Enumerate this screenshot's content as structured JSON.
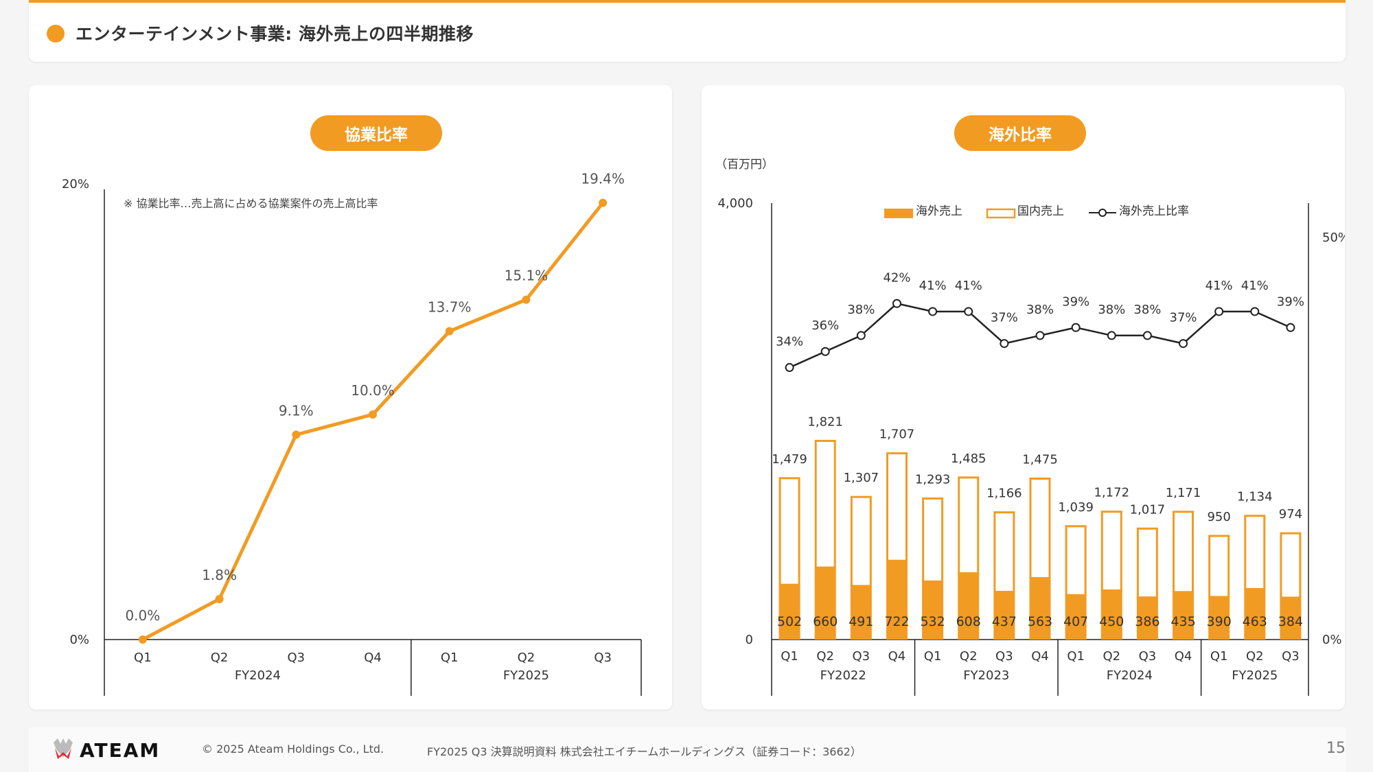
{
  "header": {
    "title": "エンターテインメント事業: 海外売上の四半期推移",
    "accent_color": "#f29b22"
  },
  "left_panel": {
    "pill_label": "協業比率",
    "note": "※ 協業比率…売上高に占める協業案件の売上高比率"
  },
  "right_panel": {
    "pill_label": "海外比率",
    "unit_label": "（百万円）"
  },
  "chart_data": [
    {
      "type": "line",
      "title": "協業比率",
      "note": "※ 協業比率…売上高に占める協業案件の売上高比率",
      "x": [
        "Q1",
        "Q2",
        "Q3",
        "Q4",
        "Q1",
        "Q2",
        "Q3"
      ],
      "groups": [
        {
          "label": "FY2024",
          "count": 4
        },
        {
          "label": "FY2025",
          "count": 3
        }
      ],
      "series": [
        {
          "name": "協業比率",
          "values": [
            0.0,
            1.8,
            9.1,
            10.0,
            13.7,
            15.1,
            19.4
          ],
          "color": "#f29b22"
        }
      ],
      "data_labels": [
        "0.0%",
        "1.8%",
        "9.1%",
        "10.0%",
        "13.7%",
        "15.1%",
        "19.4%"
      ],
      "ylim": [
        0,
        20
      ],
      "y_ticks": [
        "0%",
        "20%"
      ],
      "xlabel": "",
      "ylabel": "",
      "grid": false
    },
    {
      "type": "bar",
      "title": "海外比率",
      "unit": "（百万円）",
      "x": [
        "Q1",
        "Q2",
        "Q3",
        "Q4",
        "Q1",
        "Q2",
        "Q3",
        "Q4",
        "Q1",
        "Q2",
        "Q3",
        "Q4",
        "Q1",
        "Q2",
        "Q3"
      ],
      "groups": [
        {
          "label": "FY2022",
          "count": 4
        },
        {
          "label": "FY2023",
          "count": 4
        },
        {
          "label": "FY2024",
          "count": 4
        },
        {
          "label": "FY2025",
          "count": 3
        }
      ],
      "series": [
        {
          "name": "海外売上",
          "kind": "bar-filled",
          "color": "#f29b22",
          "values": [
            502,
            660,
            491,
            722,
            532,
            608,
            437,
            563,
            407,
            450,
            386,
            435,
            390,
            463,
            384
          ]
        },
        {
          "name": "国内売上",
          "kind": "bar-outline",
          "color": "#f29b22",
          "values": [
            977,
            1161,
            816,
            985,
            761,
            877,
            729,
            912,
            632,
            722,
            631,
            736,
            560,
            671,
            590
          ]
        },
        {
          "name": "海外売上比率",
          "kind": "line",
          "axis": "right",
          "color": "#222222",
          "values": [
            34,
            36,
            38,
            42,
            41,
            41,
            37,
            38,
            39,
            38,
            38,
            37,
            41,
            41,
            39
          ]
        }
      ],
      "total_labels": [
        "1,479",
        "1,821",
        "1,307",
        "1,707",
        "1,293",
        "1,485",
        "1,166",
        "1,475",
        "1,039",
        "1,172",
        "1,017",
        "1,171",
        "950",
        "1,134",
        "974"
      ],
      "overseas_labels": [
        "502",
        "660",
        "491",
        "722",
        "532",
        "608",
        "437",
        "563",
        "407",
        "450",
        "386",
        "435",
        "390",
        "463",
        "384"
      ],
      "ratio_labels": [
        "34%",
        "36%",
        "38%",
        "42%",
        "41%",
        "41%",
        "37%",
        "38%",
        "39%",
        "38%",
        "38%",
        "37%",
        "41%",
        "41%",
        "39%"
      ],
      "legend": [
        "海外売上",
        "国内売上",
        "海外売上比率"
      ],
      "legend_position": "top-center",
      "ylim_left": [
        0,
        4000
      ],
      "ylim_right": [
        0,
        50
      ],
      "y_ticks_left": [
        "0",
        "4,000"
      ],
      "y_ticks_right": [
        "0%",
        "50%"
      ],
      "grid": false
    }
  ],
  "footer": {
    "logo_text": "ATEAM",
    "copyright": "© 2025 Ateam Holdings Co., Ltd.",
    "doc_title": "FY2025 Q3 決算説明資料 株式会社エイチームホールディングス（証券コード：3662）",
    "page_number": "15"
  }
}
